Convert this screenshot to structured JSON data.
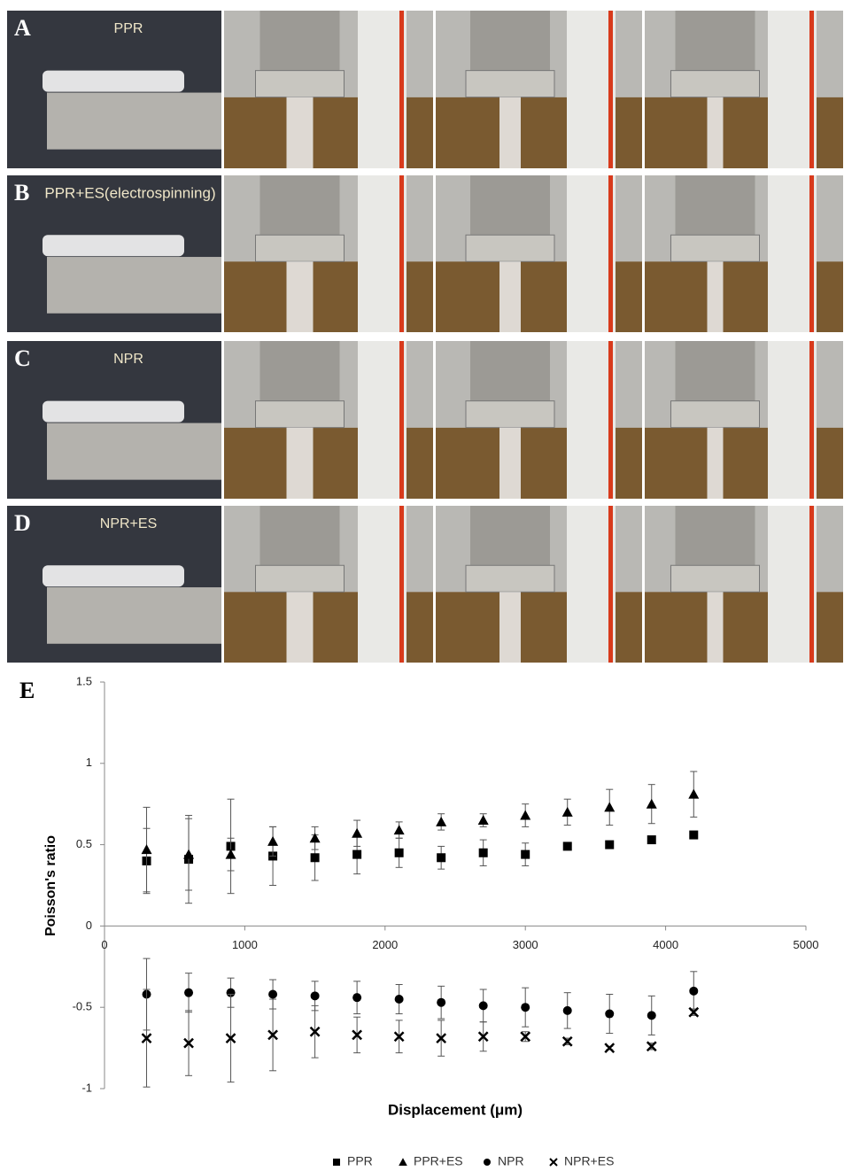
{
  "panels": [
    {
      "letter": "A",
      "label": "PPR"
    },
    {
      "letter": "B",
      "label": "PPR+ES(electrospinning)"
    },
    {
      "letter": "C",
      "label": "NPR"
    },
    {
      "letter": "D",
      "label": "NPR+ES"
    }
  ],
  "chart_data": {
    "type": "scatter",
    "panel": "E",
    "x_label": "Displacement (μm)",
    "y_label": "Poisson's ratio",
    "x": [
      300,
      600,
      900,
      1200,
      1500,
      1800,
      2100,
      2400,
      2700,
      3000,
      3300,
      3600,
      3900,
      4200
    ],
    "xlim": [
      0,
      5000
    ],
    "xticks": [
      0,
      1000,
      2000,
      3000,
      4000,
      5000
    ],
    "ylim": [
      -1,
      1.5
    ],
    "yticks": [
      -1,
      -0.5,
      0,
      0.5,
      1,
      1.5
    ],
    "legend": "bottom",
    "series": [
      {
        "name": "PPR",
        "color": "#000000",
        "marker": "square",
        "values": [
          0.4,
          0.41,
          0.49,
          0.43,
          0.42,
          0.44,
          0.45,
          0.42,
          0.45,
          0.44,
          0.49,
          0.5,
          0.53,
          0.56
        ],
        "errors": [
          0.2,
          0.27,
          0.29,
          0.18,
          0.14,
          0.12,
          0.09,
          0.07,
          0.08,
          0.07,
          0.01,
          0.01,
          0.01,
          0.01
        ]
      },
      {
        "name": "PPR+ES",
        "color": "#000000",
        "marker": "triangle",
        "values": [
          0.47,
          0.44,
          0.44,
          0.52,
          0.54,
          0.57,
          0.59,
          0.64,
          0.65,
          0.68,
          0.7,
          0.73,
          0.75,
          0.81
        ],
        "errors": [
          0.26,
          0.22,
          0.1,
          0.09,
          0.07,
          0.08,
          0.05,
          0.05,
          0.04,
          0.07,
          0.08,
          0.11,
          0.12,
          0.14
        ]
      },
      {
        "name": "NPR",
        "color": "#000000",
        "marker": "circle",
        "values": [
          -0.42,
          -0.41,
          -0.41,
          -0.42,
          -0.43,
          -0.44,
          -0.45,
          -0.47,
          -0.49,
          -0.5,
          -0.52,
          -0.54,
          -0.55,
          -0.4
        ],
        "errors": [
          0.22,
          0.12,
          0.09,
          0.09,
          0.09,
          0.1,
          0.09,
          0.1,
          0.1,
          0.12,
          0.11,
          0.12,
          0.12,
          0.12
        ]
      },
      {
        "name": "NPR+ES",
        "color": "#000000",
        "marker": "cross",
        "values": [
          -0.69,
          -0.72,
          -0.69,
          -0.67,
          -0.65,
          -0.67,
          -0.68,
          -0.69,
          -0.68,
          -0.68,
          -0.71,
          -0.75,
          -0.74,
          -0.53
        ],
        "errors": [
          0.3,
          0.2,
          0.27,
          0.22,
          0.16,
          0.11,
          0.1,
          0.11,
          0.09,
          0.03,
          0.02,
          0.01,
          0.02,
          0.02
        ]
      }
    ]
  }
}
